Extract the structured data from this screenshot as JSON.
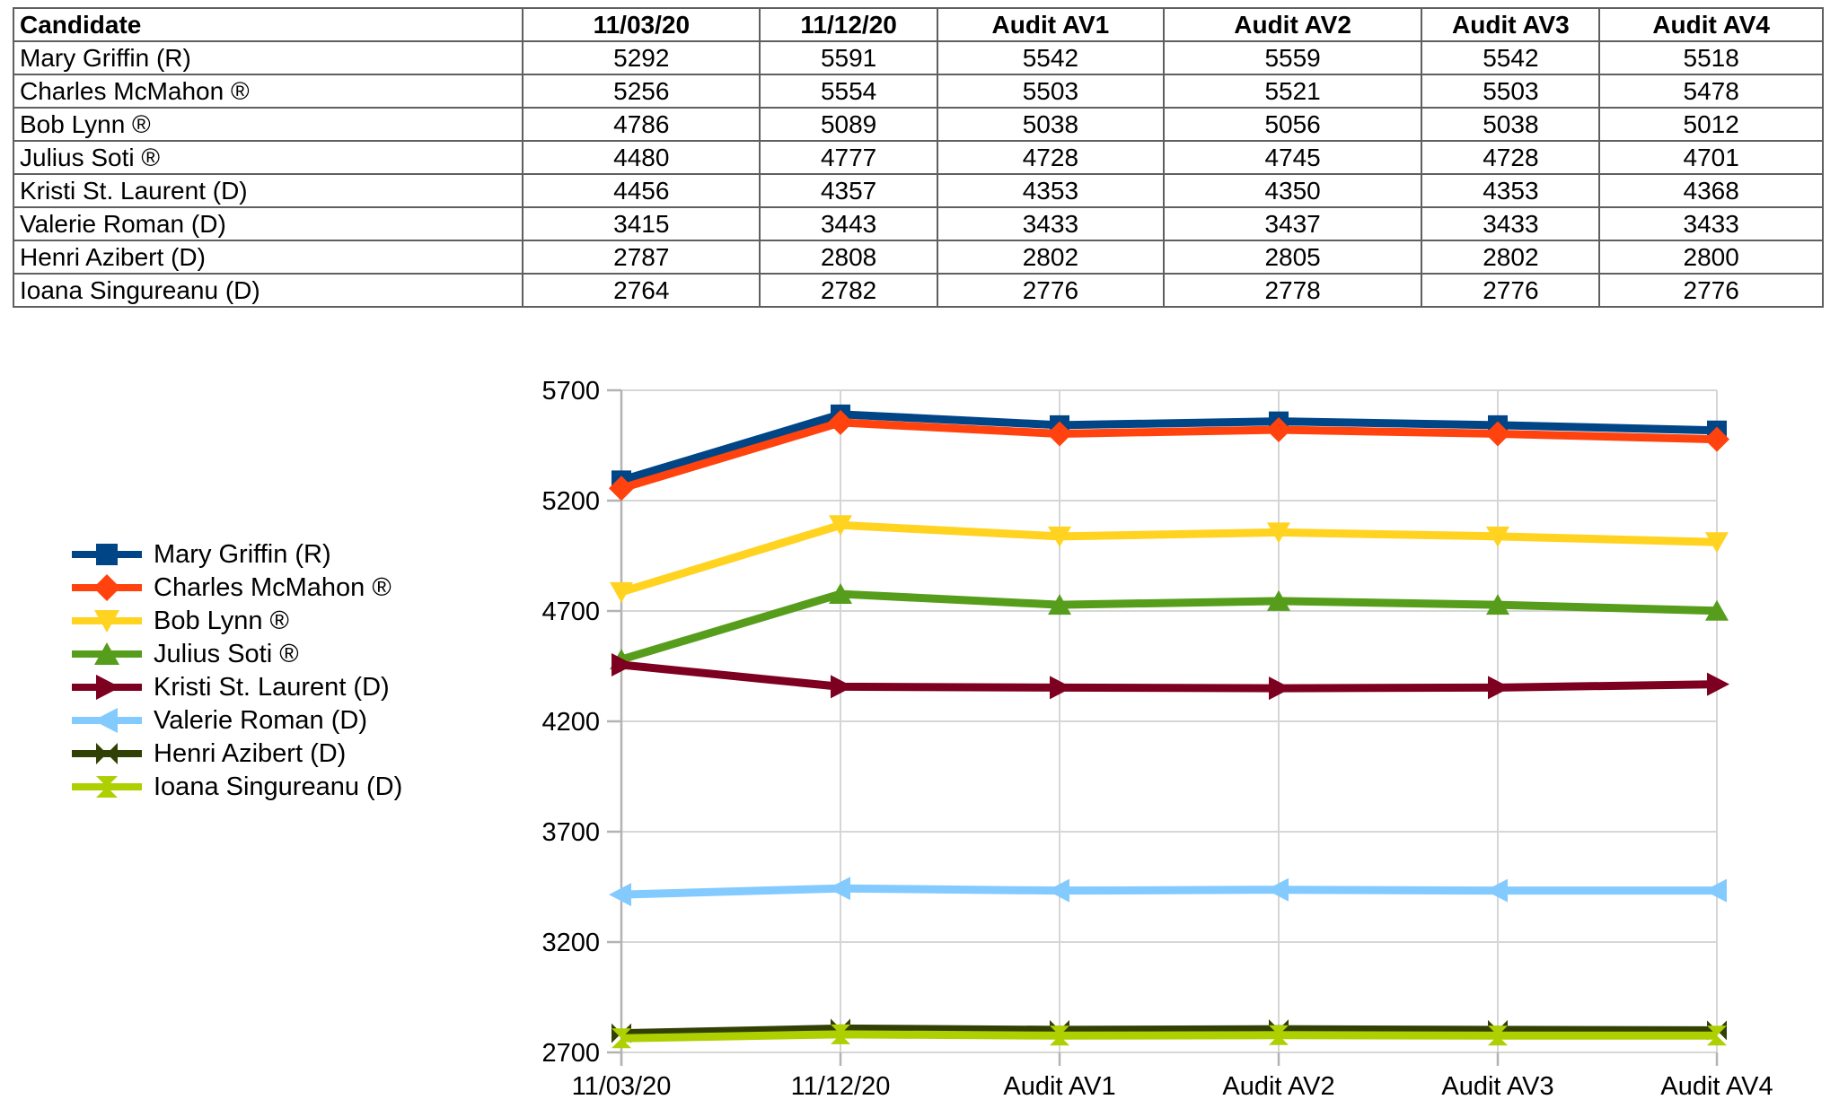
{
  "table": {
    "columns": [
      "Candidate",
      "11/03/20",
      "11/12/20",
      "Audit AV1",
      "Audit AV2",
      "Audit AV3",
      "Audit AV4"
    ],
    "rows": [
      {
        "candidate": "Mary Griffin (R)",
        "values": [
          5292,
          5591,
          5542,
          5559,
          5542,
          5518
        ]
      },
      {
        "candidate": "Charles McMahon ®",
        "values": [
          5256,
          5554,
          5503,
          5521,
          5503,
          5478
        ]
      },
      {
        "candidate": "Bob Lynn ®",
        "values": [
          4786,
          5089,
          5038,
          5056,
          5038,
          5012
        ]
      },
      {
        "candidate": "Julius Soti ®",
        "values": [
          4480,
          4777,
          4728,
          4745,
          4728,
          4701
        ]
      },
      {
        "candidate": "Kristi St. Laurent (D)",
        "values": [
          4456,
          4357,
          4353,
          4350,
          4353,
          4368
        ]
      },
      {
        "candidate": "Valerie Roman (D)",
        "values": [
          3415,
          3443,
          3433,
          3437,
          3433,
          3433
        ]
      },
      {
        "candidate": "Henri Azibert (D)",
        "values": [
          2787,
          2808,
          2802,
          2805,
          2802,
          2800
        ]
      },
      {
        "candidate": "Ioana Singureanu (D)",
        "values": [
          2764,
          2782,
          2776,
          2778,
          2776,
          2776
        ]
      }
    ]
  },
  "chart_data": {
    "type": "line",
    "categories": [
      "11/03/20",
      "11/12/20",
      "Audit AV1",
      "Audit AV2",
      "Audit AV3",
      "Audit AV4"
    ],
    "series": [
      {
        "name": "Mary Griffin (R)",
        "color": "#004586",
        "marker": "square",
        "values": [
          5292,
          5591,
          5542,
          5559,
          5542,
          5518
        ]
      },
      {
        "name": "Charles McMahon ®",
        "color": "#ff420e",
        "marker": "diamond",
        "values": [
          5256,
          5554,
          5503,
          5521,
          5503,
          5478
        ]
      },
      {
        "name": "Bob Lynn ®",
        "color": "#ffd320",
        "marker": "tri-down",
        "values": [
          4786,
          5089,
          5038,
          5056,
          5038,
          5012
        ]
      },
      {
        "name": "Julius Soti ®",
        "color": "#579d1c",
        "marker": "tri-up",
        "values": [
          4480,
          4777,
          4728,
          4745,
          4728,
          4701
        ]
      },
      {
        "name": "Kristi St. Laurent (D)",
        "color": "#7e0021",
        "marker": "tri-right",
        "values": [
          4456,
          4357,
          4353,
          4350,
          4353,
          4368
        ]
      },
      {
        "name": "Valerie Roman (D)",
        "color": "#83caff",
        "marker": "tri-left",
        "values": [
          3415,
          3443,
          3433,
          3437,
          3433,
          3433
        ]
      },
      {
        "name": "Henri Azibert (D)",
        "color": "#314004",
        "marker": "bowtie",
        "values": [
          2787,
          2808,
          2802,
          2805,
          2802,
          2800
        ]
      },
      {
        "name": "Ioana Singureanu (D)",
        "color": "#aecf00",
        "marker": "hourglass",
        "values": [
          2764,
          2782,
          2776,
          2778,
          2776,
          2776
        ]
      }
    ],
    "yticks": [
      2700,
      3200,
      3700,
      4200,
      4700,
      5200,
      5700
    ],
    "ylim": [
      2700,
      5700
    ],
    "xlabel": "",
    "ylabel": "",
    "title": "",
    "grid": true,
    "legend_position": "left",
    "grid_color": "#d6d6d6",
    "axis_color": "#b3b3b3"
  }
}
